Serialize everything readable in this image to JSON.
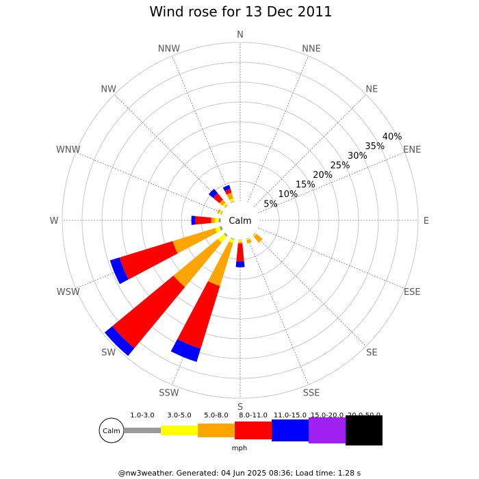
{
  "chart_data": {
    "type": "windrose",
    "title": "Wind rose for 13 Dec 2011",
    "directions": [
      "N",
      "NNE",
      "NE",
      "ENE",
      "E",
      "ESE",
      "SE",
      "SSE",
      "S",
      "SSW",
      "SW",
      "WSW",
      "W",
      "WNW",
      "NW",
      "NNW"
    ],
    "ring_labels": [
      "5%",
      "10%",
      "15%",
      "20%",
      "25%",
      "30%",
      "35%",
      "40%"
    ],
    "rmax_percent": 40,
    "calm_label": "Calm",
    "bins": [
      {
        "label": "1.0-3.0",
        "color": "#999999"
      },
      {
        "label": "3.0-5.0",
        "color": "#ffff00"
      },
      {
        "label": "5.0-8.0",
        "color": "#ffa500"
      },
      {
        "label": "8.0-11.0",
        "color": "#ff0000"
      },
      {
        "label": "11.0-15.0",
        "color": "#0000ff"
      },
      {
        "label": "15.0-20.0",
        "color": "#a020f0"
      },
      {
        "label": "20.0-50.0",
        "color": "#000000"
      }
    ],
    "unit": "mph",
    "series": [
      {
        "direction": "S",
        "cumulative": [
          0.2,
          0.6,
          1.0,
          5.5,
          7.0
        ]
      },
      {
        "direction": "SSE",
        "cumulative": [
          0.2,
          0.5,
          1.3
        ]
      },
      {
        "direction": "SE",
        "cumulative": [
          0.2,
          0.5,
          2.5
        ]
      },
      {
        "direction": "SSW",
        "cumulative": [
          0.3,
          1.2,
          12.5,
          29.0,
          32.5
        ]
      },
      {
        "direction": "SW",
        "cumulative": [
          0.5,
          2.5,
          17.0,
          37.0,
          39.5
        ]
      },
      {
        "direction": "WSW",
        "cumulative": [
          0.6,
          1.8,
          13.0,
          27.0,
          29.5
        ]
      },
      {
        "direction": "W",
        "cumulative": [
          0.6,
          1.5,
          2.5,
          6.5,
          7.5
        ]
      },
      {
        "direction": "WNW",
        "cumulative": [
          0.3,
          0.8,
          1.2
        ]
      },
      {
        "direction": "NW",
        "cumulative": [
          0.3,
          1.0,
          2.0,
          4.0,
          5.5
        ]
      },
      {
        "direction": "NNW",
        "cumulative": [
          0.3,
          1.0,
          2.5,
          3.5,
          4.5
        ]
      }
    ]
  },
  "footer": "@nw3weather. Generated: 04 Jun 2025 08:36; Load time: 1.28 s"
}
